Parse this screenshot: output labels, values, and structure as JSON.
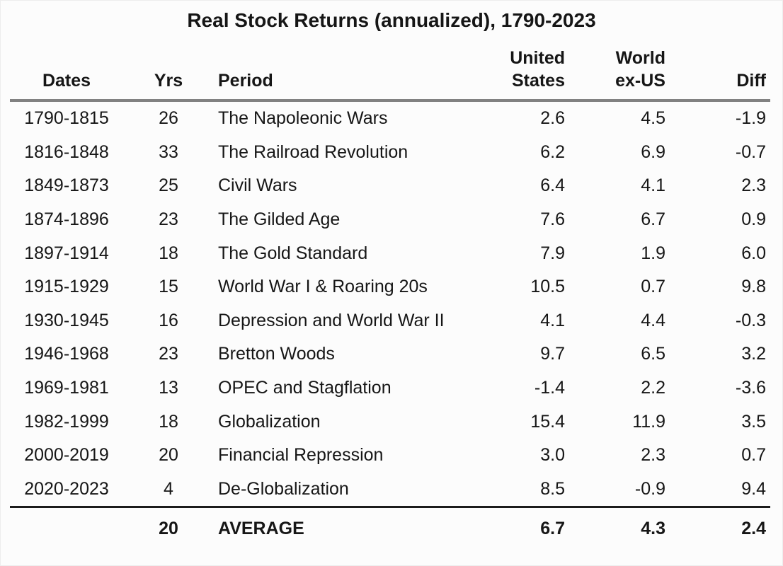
{
  "chart_data": {
    "type": "table",
    "title": "Real Stock Returns (annualized), 1790-2023",
    "columns": [
      "Dates",
      "Yrs",
      "Period",
      "United States",
      "World ex-US",
      "Diff"
    ],
    "headers": {
      "dates": "Dates",
      "yrs": "Yrs",
      "period": "Period",
      "us_line1": "United",
      "us_line2": "States",
      "world_line1": "World",
      "world_line2": "ex-US",
      "diff": "Diff"
    },
    "rows": [
      {
        "dates": "1790-1815",
        "yrs": "26",
        "period": "The Napoleonic Wars",
        "us": "2.6",
        "world": "4.5",
        "diff": "-1.9"
      },
      {
        "dates": "1816-1848",
        "yrs": "33",
        "period": "The Railroad Revolution",
        "us": "6.2",
        "world": "6.9",
        "diff": "-0.7"
      },
      {
        "dates": "1849-1873",
        "yrs": "25",
        "period": "Civil Wars",
        "us": "6.4",
        "world": "4.1",
        "diff": "2.3"
      },
      {
        "dates": "1874-1896",
        "yrs": "23",
        "period": "The Gilded Age",
        "us": "7.6",
        "world": "6.7",
        "diff": "0.9"
      },
      {
        "dates": "1897-1914",
        "yrs": "18",
        "period": "The Gold Standard",
        "us": "7.9",
        "world": "1.9",
        "diff": "6.0"
      },
      {
        "dates": "1915-1929",
        "yrs": "15",
        "period": "World War I & Roaring 20s",
        "us": "10.5",
        "world": "0.7",
        "diff": "9.8"
      },
      {
        "dates": "1930-1945",
        "yrs": "16",
        "period": "Depression and World War II",
        "us": "4.1",
        "world": "4.4",
        "diff": "-0.3"
      },
      {
        "dates": "1946-1968",
        "yrs": "23",
        "period": "Bretton Woods",
        "us": "9.7",
        "world": "6.5",
        "diff": "3.2"
      },
      {
        "dates": "1969-1981",
        "yrs": "13",
        "period": "OPEC and Stagflation",
        "us": "-1.4",
        "world": "2.2",
        "diff": "-3.6"
      },
      {
        "dates": "1982-1999",
        "yrs": "18",
        "period": "Globalization",
        "us": "15.4",
        "world": "11.9",
        "diff": "3.5"
      },
      {
        "dates": "2000-2019",
        "yrs": "20",
        "period": "Financial Repression",
        "us": "3.0",
        "world": "2.3",
        "diff": "0.7"
      },
      {
        "dates": "2020-2023",
        "yrs": "4",
        "period": "De-Globalization",
        "us": "8.5",
        "world": "-0.9",
        "diff": "9.4"
      }
    ],
    "average_row": {
      "dates": "",
      "yrs": "20",
      "label": "AVERAGE",
      "us": "6.7",
      "world": "4.3",
      "diff": "2.4"
    },
    "layout_hints": {
      "header_rule_color": "#818181",
      "footer_rule_color": "#1c1c1c",
      "background": "#fcfcfc",
      "text_color": "#161616"
    }
  }
}
